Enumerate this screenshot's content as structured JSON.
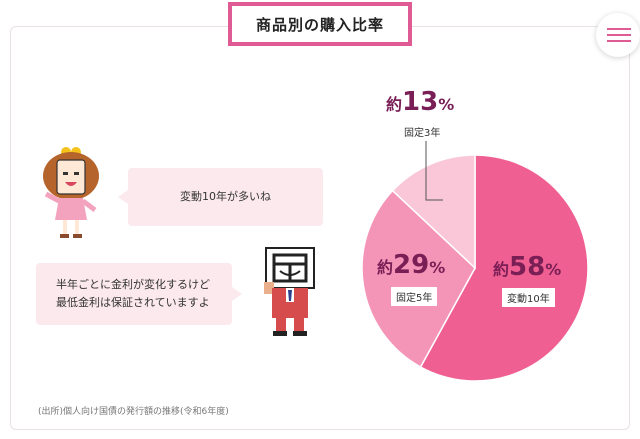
{
  "title": "商品別の購入比率",
  "bubble_girl": "変動10年が多いね",
  "bubble_mascot": [
    "半年ごとに金利が変化するけど",
    "最低金利は保証されていますよ"
  ],
  "source": "(出所)個人向け国債の発行額の推移(令和6年度)",
  "icons": {
    "menu": "hamburger-menu-icon"
  },
  "colors": {
    "accent": "#e05a93",
    "pct_text": "#7a1e56"
  },
  "chart_data": {
    "type": "pie",
    "slices": [
      {
        "prefix": "約",
        "value": 58,
        "unit": "%",
        "label": "変動10年",
        "color": "#ef5f92"
      },
      {
        "prefix": "約",
        "value": 29,
        "unit": "%",
        "label": "固定5年",
        "color": "#f495b8"
      },
      {
        "prefix": "約",
        "value": 13,
        "unit": "%",
        "label": "固定3年",
        "color": "#f9c7d8"
      }
    ]
  }
}
